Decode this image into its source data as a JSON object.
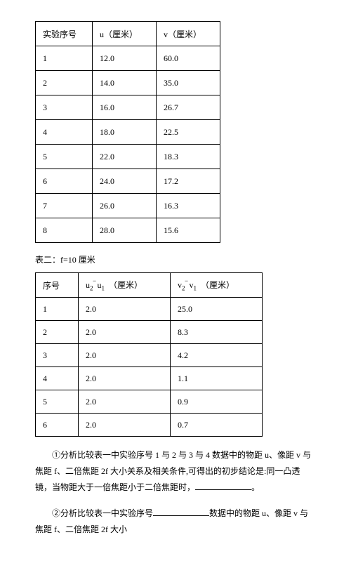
{
  "table1": {
    "headers": [
      "实验序号",
      "u（厘米）",
      "v（厘米）"
    ],
    "rows": [
      [
        "1",
        "12.0",
        "60.0"
      ],
      [
        "2",
        "14.0",
        "35.0"
      ],
      [
        "3",
        "16.0",
        "26.7"
      ],
      [
        "4",
        "18.0",
        "22.5"
      ],
      [
        "5",
        "22.0",
        "18.3"
      ],
      [
        "6",
        "24.0",
        "17.2"
      ],
      [
        "7",
        "26.0",
        "16.3"
      ],
      [
        "8",
        "28.0",
        "15.6"
      ]
    ]
  },
  "caption2": "表二：f=10 厘米",
  "table2": {
    "header_col1": "序号",
    "header_col2_pre": "u",
    "header_col2_sub1": "2",
    "header_col2_bar": "−",
    "header_col2_mid": "u",
    "header_col2_sub2": "1",
    "header_col2_post": "（厘米）",
    "header_col3_pre": "v",
    "header_col3_sub1": "2",
    "header_col3_bar": "−",
    "header_col3_mid": "v",
    "header_col3_sub2": "1",
    "header_col3_post": "（厘米）",
    "rows": [
      [
        "1",
        "2.0",
        "25.0"
      ],
      [
        "2",
        "2.0",
        "8.3"
      ],
      [
        "3",
        "2.0",
        "4.2"
      ],
      [
        "4",
        "2.0",
        "1.1"
      ],
      [
        "5",
        "2.0",
        "0.9"
      ],
      [
        "6",
        "2.0",
        "0.7"
      ]
    ]
  },
  "para1_a": "①分析比较表一中实验序号 1 与 2 与 3 与 4 数据中的物距 u、像距 v 与焦距 f、二倍焦距 2f 大小关系及相关条件,可得出的初步结论是:同一凸透镜，当物距大于一倍焦距小于二倍焦距时，",
  "para1_b": "。",
  "para2_a": "②分析比较表一中实验序号",
  "para2_b": "数据中的物距 u、像距 v 与焦距 f、二倍焦距 2f 大小"
}
